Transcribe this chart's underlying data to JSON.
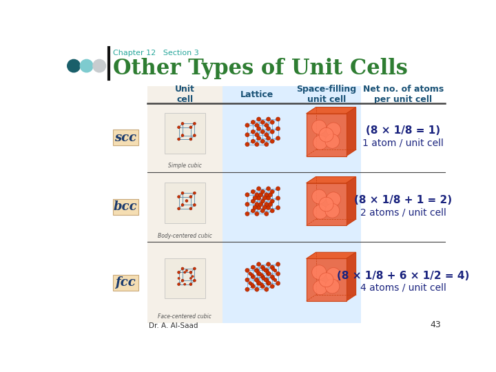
{
  "title": "Other Types of Unit Cells",
  "chapter_text": "Chapter 12   Section 3",
  "bg_color": "#ffffff",
  "header_color": "#2e7d32",
  "chapter_color": "#26a69a",
  "col_header_color": "#1a5276",
  "row_labels": [
    "scc",
    "bcc",
    "fcc"
  ],
  "row_label_bg": "#f5deb3",
  "row_label_color": "#1a3a6e",
  "col_headers": [
    "Unit\ncell",
    "Lattice",
    "Space-filling\nunit cell",
    "Net no. of atoms\nper unit cell"
  ],
  "formulas": [
    [
      "(8 × 1/8 = 1)",
      "1 atom / unit cell"
    ],
    [
      "(8 × 1/8 + 1 = 2)",
      "2 atoms / unit cell"
    ],
    [
      "(8 × 1/8 + 6 × 1/2 = 4)",
      "4 atoms / unit cell"
    ]
  ],
  "formula_color": "#1a237e",
  "dot_colors": [
    "#1a5f6a",
    "#7ecbcf",
    "#c8cccf"
  ],
  "table_line_color": "#444444",
  "cell_bg_col_uc": "#f5f0e8",
  "cell_bg_col_lat": "#ddeeff",
  "cell_bg_col_sf": "#ddeeff",
  "page_num": "43",
  "footer_text": "Dr. A. Al-Saad",
  "captions": [
    "Simple cubic",
    "Body-centered cubic",
    "Face-centered cubic"
  ]
}
